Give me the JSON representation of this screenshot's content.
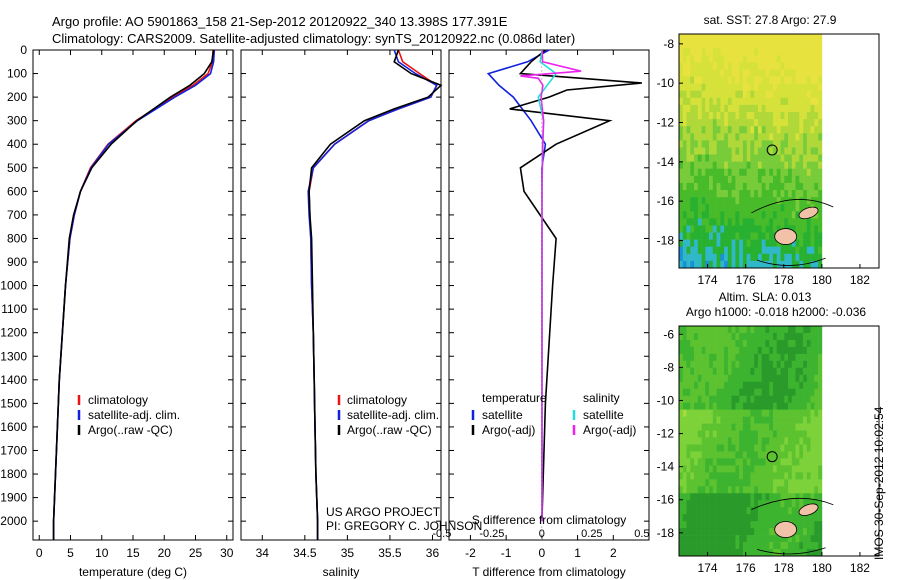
{
  "header": {
    "title_line1": "Argo profile: AO 5901863_158 21-Sep-2012 20120922_340 13.398S 177.391E",
    "title_line2": "Climatology: CARS2009. Satellite-adjusted climatology: synTS_20120922.nc (0.086d later)"
  },
  "credit": {
    "line1": "US ARGO PROJECT",
    "line2": "PI: GREGORY C. JOHNSON"
  },
  "timestamp": "IMOS 30-Sep-2012 10:02:54",
  "colors": {
    "climatology": "#ee1111",
    "satellite": "#1122dd",
    "argo": "#000000",
    "salinity_satellite": "#22dddd",
    "salinity_argo": "#ee22ee",
    "island": "#f2c2a8"
  },
  "chart_data": [
    {
      "type": "line",
      "name": "temperature-panel",
      "xlabel": "temperature (deg C)",
      "ylabel": "",
      "xlim": [
        -1,
        31
      ],
      "ylim": [
        2080,
        0
      ],
      "xticks": [
        0,
        5,
        10,
        15,
        20,
        25,
        30
      ],
      "yticks": [
        0,
        100,
        200,
        300,
        400,
        500,
        600,
        700,
        800,
        900,
        1000,
        1100,
        1200,
        1300,
        1400,
        1500,
        1600,
        1700,
        1800,
        1900,
        2000
      ],
      "legend": [
        "climatology",
        "satellite-adj. clim.",
        "Argo(..raw -QC)"
      ],
      "legend_position": "lower-left",
      "series": [
        {
          "name": "climatology",
          "depth": [
            0,
            50,
            100,
            150,
            200,
            300,
            400,
            500,
            600,
            700,
            800,
            1000,
            1200,
            1400,
            1600,
            1800,
            2000,
            2080
          ],
          "values": [
            27.8,
            27.7,
            27.0,
            24.6,
            21.4,
            15.5,
            11.0,
            8.2,
            6.6,
            5.6,
            4.9,
            4.2,
            3.7,
            3.2,
            2.9,
            2.6,
            2.3,
            2.3
          ]
        },
        {
          "name": "satellite-adj. clim.",
          "depth": [
            0,
            50,
            100,
            150,
            200,
            300,
            400,
            500,
            600,
            700,
            800,
            1000,
            1200,
            1400,
            1600,
            1800,
            2000,
            2080
          ],
          "values": [
            28.0,
            27.9,
            27.4,
            25.0,
            21.7,
            15.7,
            11.1,
            8.3,
            6.6,
            5.6,
            4.9,
            4.2,
            3.7,
            3.2,
            2.9,
            2.6,
            2.3,
            2.3
          ]
        },
        {
          "name": "Argo(..raw -QC)",
          "depth": [
            0,
            50,
            100,
            150,
            200,
            300,
            400,
            500,
            600,
            700,
            800,
            1000,
            1200,
            1400,
            1600,
            1800,
            2000,
            2080
          ],
          "values": [
            27.9,
            27.6,
            26.4,
            24.1,
            21.0,
            15.6,
            11.5,
            8.4,
            6.6,
            5.5,
            4.8,
            4.2,
            3.7,
            3.2,
            2.9,
            2.6,
            2.3,
            2.3
          ]
        }
      ]
    },
    {
      "type": "line",
      "name": "salinity-panel",
      "xlabel": "salinity",
      "xlim": [
        33.75,
        36.1
      ],
      "ylim": [
        2080,
        0
      ],
      "xticks": [
        34,
        34.5,
        35,
        35.5,
        36
      ],
      "legend": [
        "climatology",
        "satellite-adj. clim.",
        "Argo(..raw -QC)"
      ],
      "legend_position": "lower-left",
      "series": [
        {
          "name": "climatology",
          "depth": [
            0,
            50,
            100,
            150,
            200,
            250,
            300,
            400,
            500,
            600,
            700,
            800,
            1000,
            1200,
            1400,
            1600,
            1800,
            2000,
            2080
          ],
          "values": [
            35.6,
            35.65,
            35.85,
            36.05,
            35.98,
            35.6,
            35.25,
            34.85,
            34.6,
            34.55,
            34.56,
            34.57,
            34.58,
            34.6,
            34.61,
            34.62,
            34.63,
            34.65,
            34.65
          ]
        },
        {
          "name": "satellite-adj. clim.",
          "depth": [
            0,
            50,
            100,
            150,
            200,
            250,
            300,
            400,
            500,
            600,
            700,
            800,
            1000,
            1200,
            1400,
            1600,
            1800,
            2000,
            2080
          ],
          "values": [
            35.55,
            35.6,
            35.8,
            36.05,
            35.98,
            35.6,
            35.25,
            34.85,
            34.6,
            34.54,
            34.55,
            34.57,
            34.58,
            34.6,
            34.61,
            34.62,
            34.63,
            34.65,
            34.65
          ]
        },
        {
          "name": "Argo(..raw -QC)",
          "depth": [
            0,
            50,
            100,
            150,
            200,
            250,
            300,
            400,
            500,
            600,
            700,
            800,
            1000,
            1200,
            1400,
            1600,
            1800,
            2000,
            2080
          ],
          "values": [
            35.6,
            35.55,
            35.75,
            36.1,
            35.95,
            35.55,
            35.2,
            34.8,
            34.58,
            34.55,
            34.56,
            34.58,
            34.59,
            34.6,
            34.61,
            34.62,
            34.63,
            34.65,
            34.65
          ]
        }
      ]
    },
    {
      "type": "line",
      "name": "difference-panel",
      "xlabel": "T difference from climatology",
      "xlabel_top": "S difference from climatology",
      "xlim": [
        -2.6,
        3.0
      ],
      "ylim": [
        2080,
        0
      ],
      "xticks": [
        -2,
        -1,
        0,
        1,
        2
      ],
      "xticks_s": [
        -0.5,
        -0.25,
        0,
        0.25,
        0.5
      ],
      "legend": [
        "temperature",
        "satellite",
        "Argo(-adj)",
        "salinity",
        "satellite",
        "Argo(-adj)"
      ],
      "legend_position": "lower-center",
      "series": [
        {
          "name": "temperature satellite",
          "depth": [
            0,
            50,
            100,
            150,
            200,
            300,
            400,
            500,
            600,
            800,
            1000,
            1500,
            2000
          ],
          "values": [
            0.2,
            -0.4,
            -1.5,
            -1.2,
            -0.8,
            -0.3,
            0.1,
            0.0,
            0.0,
            0.0,
            0.0,
            0.0,
            0.0
          ]
        },
        {
          "name": "temperature Argo(-adj)",
          "depth": [
            0,
            50,
            100,
            140,
            170,
            200,
            250,
            300,
            400,
            500,
            600,
            800,
            1000,
            1500,
            2000
          ],
          "values": [
            0.1,
            -0.3,
            -0.6,
            2.8,
            0.7,
            0.2,
            -0.9,
            1.9,
            0.4,
            -0.6,
            -0.5,
            0.4,
            0.3,
            0.1,
            0.0
          ]
        },
        {
          "name": "salinity satellite",
          "depth": [
            0,
            50,
            100,
            150,
            200,
            300,
            400,
            600,
            800,
            1000,
            1500,
            2000
          ],
          "values": [
            0.01,
            -0.05,
            0.4,
            0.15,
            -0.1,
            0.05,
            0.03,
            0.0,
            0.0,
            0.0,
            0.0,
            0.0
          ]
        },
        {
          "name": "salinity Argo(-adj)",
          "depth": [
            0,
            50,
            90,
            110,
            120,
            150,
            200,
            300,
            400,
            600,
            800,
            1000,
            1500,
            2000
          ],
          "values": [
            0.01,
            0.02,
            1.1,
            -0.6,
            -0.1,
            0.03,
            -0.02,
            0.05,
            0.02,
            0.0,
            0.0,
            0.0,
            0.0,
            0.0
          ]
        }
      ]
    },
    {
      "type": "heatmap",
      "name": "sst-map",
      "title": "sat. SST: 27.8 Argo: 27.9",
      "xlim": [
        172.5,
        183
      ],
      "ylim": [
        -19.4,
        -7.5
      ],
      "xticks": [
        174,
        176,
        178,
        180,
        182
      ],
      "yticks": [
        -8,
        -10,
        -12,
        -14,
        -16,
        -18
      ],
      "marker": {
        "lon": 177.391,
        "lat": -13.398
      },
      "colors": [
        "#28b030",
        "#48bb2a",
        "#78cc3a",
        "#b0d838",
        "#d6e23a",
        "#e8e23e"
      ]
    },
    {
      "type": "heatmap",
      "name": "sla-map",
      "title_line1": "Altim. SLA: 0.013",
      "title_line2": "Argo h1000: -0.018 h2000: -0.036",
      "xlim": [
        172.5,
        183
      ],
      "ylim": [
        -19.4,
        -5.5
      ],
      "xticks": [
        174,
        176,
        178,
        180,
        182
      ],
      "yticks": [
        -6,
        -8,
        -10,
        -12,
        -14,
        -16,
        -18
      ],
      "marker": {
        "lon": 177.391,
        "lat": -13.398
      },
      "colors": [
        "#2a9a2a",
        "#3cb430",
        "#5cc230",
        "#7cd238",
        "#a4dc3a"
      ]
    }
  ]
}
